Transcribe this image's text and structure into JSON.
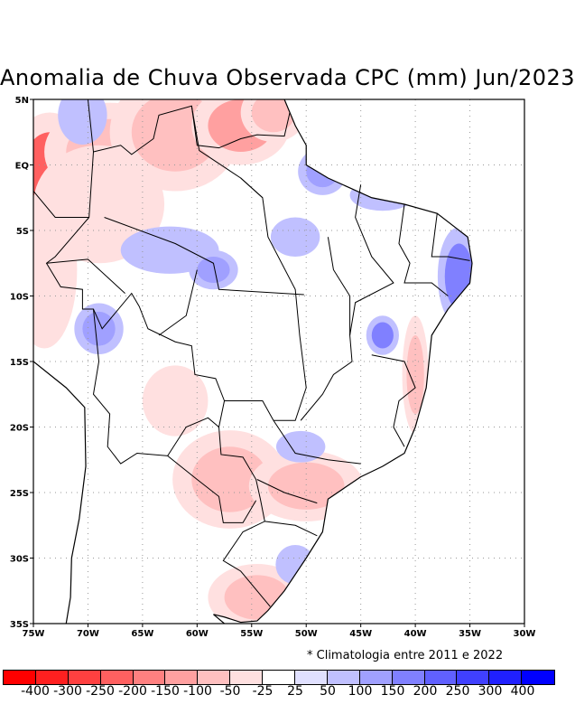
{
  "title": "Anomalia de Chuva Observada CPC (mm) Jun/2023",
  "note": "* Climatologia entre 2011 e 2022",
  "chart_data": {
    "type": "heatmap",
    "title": "Anomalia de Chuva Observada CPC (mm) Jun/2023",
    "x_ticks": [
      "75W",
      "70W",
      "65W",
      "60W",
      "55W",
      "50W",
      "45W",
      "40W",
      "35W",
      "30W"
    ],
    "y_ticks": [
      "5N",
      "EQ",
      "5S",
      "10S",
      "15S",
      "20S",
      "25S",
      "30S",
      "35S"
    ],
    "lon_range": [
      -75,
      -30
    ],
    "lat_range": [
      -35,
      5
    ],
    "grid": true,
    "colorbar": {
      "labels": [
        "-400",
        "-300",
        "-250",
        "-200",
        "-150",
        "-100",
        "-50",
        "-25",
        "25",
        "50",
        "100",
        "150",
        "200",
        "250",
        "300",
        "400"
      ],
      "colors": [
        "#ff0000",
        "#ff2020",
        "#ff4040",
        "#ff6060",
        "#ff8080",
        "#ffa0a0",
        "#ffc0c0",
        "#ffe0e0",
        "#ffffff",
        "#e0e0ff",
        "#c0c0ff",
        "#a0a0ff",
        "#8080ff",
        "#6060ff",
        "#4040ff",
        "#2020ff",
        "#0000ff"
      ]
    },
    "anomaly_patches": [
      {
        "lon": -73.5,
        "lat": -0.5,
        "rlon": 2.5,
        "rlat": 3,
        "value": -250
      },
      {
        "lon": -68,
        "lat": 1,
        "rlon": 4,
        "rlat": 2.5,
        "value": -100
      },
      {
        "lon": -62,
        "lat": 2.5,
        "rlon": 4,
        "rlat": 3,
        "value": -100
      },
      {
        "lon": -56,
        "lat": 3,
        "rlon": 3,
        "rlat": 2,
        "value": -150
      },
      {
        "lon": -53,
        "lat": 4,
        "rlon": 2,
        "rlat": 1.5,
        "value": -100
      },
      {
        "lon": -69,
        "lat": -3,
        "rlon": 4,
        "rlat": 3,
        "value": -50
      },
      {
        "lon": -74,
        "lat": -8,
        "rlon": 2,
        "rlat": 4,
        "value": -50
      },
      {
        "lon": -70.5,
        "lat": 3.8,
        "rlon": 1.5,
        "rlat": 1.5,
        "value": 50
      },
      {
        "lon": -48.5,
        "lat": -0.5,
        "rlon": 1.5,
        "rlat": 1.2,
        "value": 100
      },
      {
        "lon": -43,
        "lat": -2.3,
        "rlon": 2,
        "rlat": 0.8,
        "value": 50
      },
      {
        "lon": -36,
        "lat": -8.5,
        "rlon": 1.3,
        "rlat": 2.5,
        "value": 150
      },
      {
        "lon": -62.5,
        "lat": -6.5,
        "rlon": 3,
        "rlat": 1.2,
        "value": 50
      },
      {
        "lon": -58.5,
        "lat": -8,
        "rlon": 1.5,
        "rlat": 1,
        "value": 100
      },
      {
        "lon": -51,
        "lat": -5.5,
        "rlon": 1.5,
        "rlat": 1,
        "value": 50
      },
      {
        "lon": -69,
        "lat": -12.5,
        "rlon": 1.5,
        "rlat": 1.3,
        "value": 100
      },
      {
        "lon": -43,
        "lat": -13,
        "rlon": 1,
        "rlat": 1,
        "value": 150
      },
      {
        "lon": -40,
        "lat": -16,
        "rlon": 0.8,
        "rlat": 3,
        "value": -100
      },
      {
        "lon": -62,
        "lat": -18,
        "rlon": 2,
        "rlat": 1.8,
        "value": -50
      },
      {
        "lon": -57,
        "lat": -24,
        "rlon": 3.5,
        "rlat": 2.5,
        "value": -100
      },
      {
        "lon": -50,
        "lat": -24.5,
        "rlon": 3.5,
        "rlat": 1.8,
        "value": -100
      },
      {
        "lon": -54.5,
        "lat": -33,
        "rlon": 3,
        "rlat": 1.7,
        "value": -100
      },
      {
        "lon": -51,
        "lat": -30.5,
        "rlon": 1.2,
        "rlat": 1,
        "value": 50
      },
      {
        "lon": -50.5,
        "lat": -21.5,
        "rlon": 1.5,
        "rlat": 0.8,
        "value": 50
      }
    ]
  }
}
